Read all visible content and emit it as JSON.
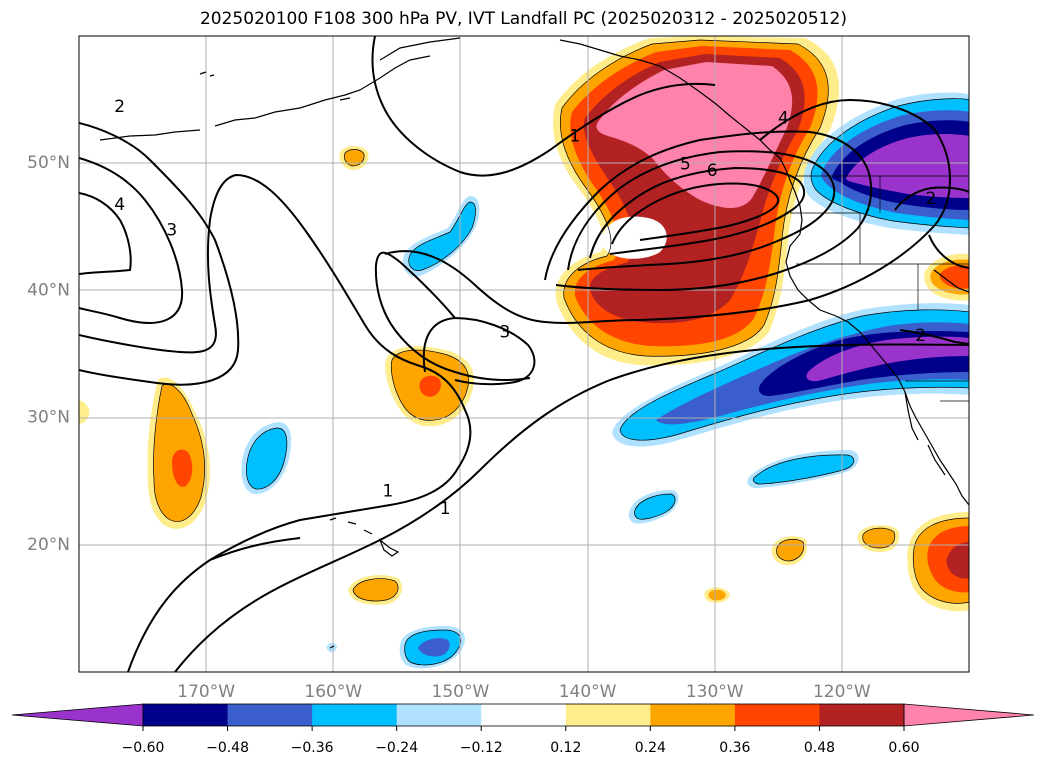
{
  "title": "2025020100 F108 300 hPa PV, IVT Landfall PC (2025020312 - 2025020512)",
  "map": {
    "projection": "PlateCarree",
    "lon_range": [
      180,
      250
    ],
    "lat_range": [
      10,
      60
    ],
    "lat_ticks": [
      {
        "lat": 20,
        "label": "20°N"
      },
      {
        "lat": 30,
        "label": "30°N"
      },
      {
        "lat": 40,
        "label": "40°N"
      },
      {
        "lat": 50,
        "label": "50°N"
      }
    ],
    "lon_ticks": [
      {
        "lon": 190,
        "label": "170°W"
      },
      {
        "lon": 200,
        "label": "160°W"
      },
      {
        "lon": 210,
        "label": "150°W"
      },
      {
        "lon": 220,
        "label": "140°W"
      },
      {
        "lon": 230,
        "label": "130°W"
      },
      {
        "lon": 240,
        "label": "120°W"
      }
    ],
    "grid": true,
    "contour_labels": [
      {
        "text": "2",
        "lon": 183.2,
        "lat": 54.4
      },
      {
        "text": "4",
        "lon": 183.2,
        "lat": 46.7
      },
      {
        "text": "3",
        "lon": 187.3,
        "lat": 44.7
      },
      {
        "text": "1",
        "lon": 219.0,
        "lat": 52.1
      },
      {
        "text": "4",
        "lon": 235.4,
        "lat": 53.5
      },
      {
        "text": "5",
        "lon": 227.7,
        "lat": 49.9
      },
      {
        "text": "6",
        "lon": 229.8,
        "lat": 49.4
      },
      {
        "text": "3",
        "lon": 213.5,
        "lat": 36.7
      },
      {
        "text": "1",
        "lon": 204.3,
        "lat": 24.2
      },
      {
        "text": "1",
        "lon": 208.8,
        "lat": 22.8
      },
      {
        "text": "2",
        "lon": 247.0,
        "lat": 47.2
      },
      {
        "text": "2",
        "lon": 246.2,
        "lat": 36.4
      }
    ]
  },
  "colorbar": {
    "extend": "both",
    "colors": [
      "#9933cc",
      "#00008b",
      "#3a5fcd",
      "#00bfff",
      "#b0e2ff",
      "#ffffff",
      "#ffec8b",
      "#ffa500",
      "#ff4500",
      "#b22222",
      "#ff82ab"
    ],
    "tick_labels": [
      "−0.60",
      "−0.48",
      "−0.36",
      "−0.24",
      "−0.12",
      "0.12",
      "0.24",
      "0.36",
      "0.48",
      "0.60"
    ]
  }
}
